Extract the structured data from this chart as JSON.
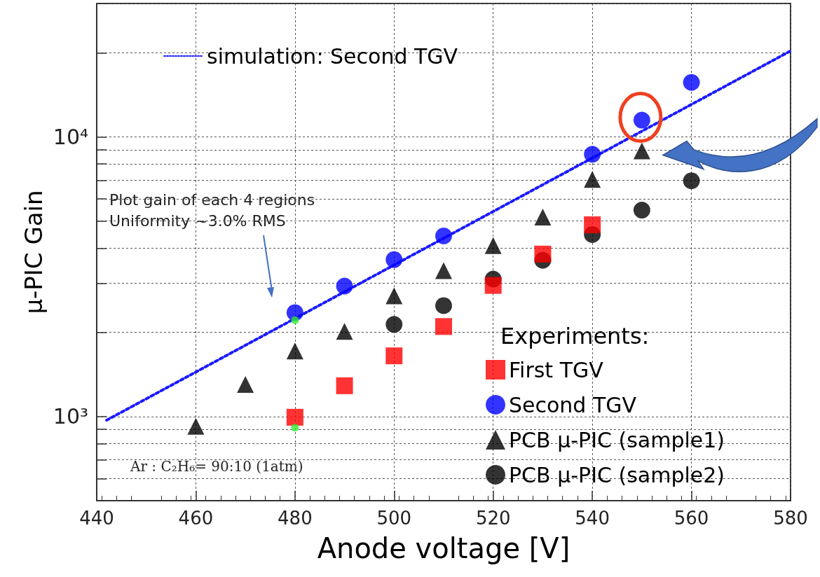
{
  "chart_data": {
    "type": "scatter",
    "xlabel": "Anode voltage [V]",
    "ylabel": "μ-PIC Gain",
    "legend_title": "Experiments:",
    "xlim": [
      440,
      580
    ],
    "xticks": [
      440,
      460,
      480,
      500,
      520,
      540,
      560,
      580
    ],
    "ylim": [
      500,
      30000
    ],
    "log": "y",
    "yticks": [
      {
        "value": 500,
        "label": null
      },
      {
        "value": 600,
        "label": null
      },
      {
        "value": 700,
        "label": null
      },
      {
        "value": 800,
        "label": null
      },
      {
        "value": 900,
        "label": null
      },
      {
        "value": 1000,
        "label": "10³"
      },
      {
        "value": 2000,
        "label": null
      },
      {
        "value": 3000,
        "label": null
      },
      {
        "value": 4000,
        "label": null
      },
      {
        "value": 5000,
        "label": null
      },
      {
        "value": 6000,
        "label": null
      },
      {
        "value": 7000,
        "label": null
      },
      {
        "value": 8000,
        "label": null
      },
      {
        "value": 9000,
        "label": null
      },
      {
        "value": 10000,
        "label": "10⁴"
      },
      {
        "value": 20000,
        "label": null
      },
      {
        "value": 30000,
        "label": null
      }
    ],
    "grid": true,
    "legend": "bottom right",
    "annotations": [
      "Plot gain of each 4 regions\nUniformity ~3.0% RMS",
      "Ar : C₂H₆= 90:10 (1atm)"
    ],
    "series": [
      {
        "name": "simulation: Second TGV",
        "type": "line",
        "line_style": "dotted",
        "marker": "none",
        "color": "#1a1aff",
        "x": [
          442,
          580
        ],
        "values": [
          970,
          20300
        ]
      },
      {
        "name": "First TGV",
        "marker": "square",
        "color": "#ff0000",
        "x": [
          480,
          490,
          500,
          510,
          520,
          530,
          540
        ],
        "values": [
          994,
          1288,
          1648,
          2098,
          2943,
          3810,
          4850
        ]
      },
      {
        "name": "Second TGV",
        "marker": "circle",
        "color": "#0000ff",
        "x": [
          480,
          490,
          500,
          510,
          540,
          550,
          560
        ],
        "values": [
          2353,
          2927,
          3640,
          4424,
          8665,
          11480,
          15660
        ]
      },
      {
        "name": "PCB μ-PIC (sample1)",
        "marker": "triangle",
        "color": "#000000",
        "x": [
          460,
          470,
          480,
          490,
          500,
          510,
          520,
          530,
          540,
          550
        ],
        "values": [
          923,
          1302,
          1716,
          2015,
          2700,
          3322,
          4083,
          5166,
          7046,
          8915
        ]
      },
      {
        "name": "PCB μ-PIC (sample2)",
        "marker": "circle",
        "color": "#000000",
        "x": [
          500,
          510,
          520,
          530,
          540,
          550,
          560
        ],
        "values": [
          2134,
          2492,
          3100,
          3620,
          4476,
          5472,
          6966
        ]
      },
      {
        "marker": "circle",
        "color": "#33ee33",
        "x": [
          480,
          480
        ],
        "values": [
          2210,
          912
        ]
      }
    ]
  }
}
